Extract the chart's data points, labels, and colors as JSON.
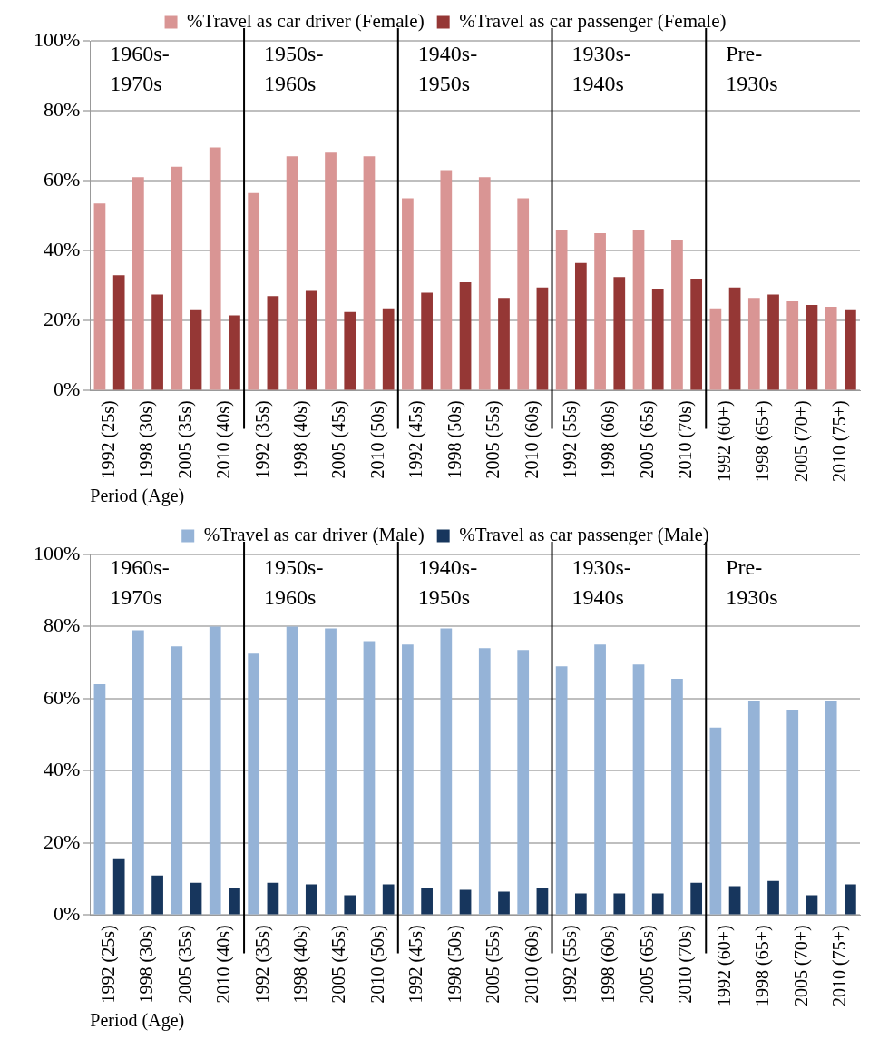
{
  "chart_data": [
    {
      "type": "bar",
      "xlabel": "Period (Age)",
      "categories": [
        "1992 (25s)",
        "1998 (30s)",
        "2005 (35s)",
        "2010 (40s)",
        "1992 (35s)",
        "1998 (40s)",
        "2005 (45s)",
        "2010 (50s)",
        "1992 (45s)",
        "1998 (50s)",
        "2005 (55s)",
        "2010 (60s)",
        "1992 (55s)",
        "1998 (60s)",
        "2005 (65s)",
        "2010 (70s)",
        "1992 (60+)",
        "1998 (65+)",
        "2005 (70+)",
        "2010 (75+)"
      ],
      "series": [
        {
          "name": "%Travel as car driver (Female)",
          "color": "#d99594",
          "values": [
            53.5,
            61,
            64,
            69.5,
            56.5,
            67,
            68,
            67,
            55,
            63,
            61,
            55,
            46,
            45,
            46,
            43,
            23.5,
            26.5,
            25.5,
            24
          ]
        },
        {
          "name": "%Travel as car passenger (Female)",
          "color": "#953735",
          "values": [
            33,
            27.5,
            23,
            21.5,
            27,
            28.5,
            22.5,
            23.5,
            28,
            31,
            26.5,
            29.5,
            36.5,
            32.5,
            29,
            32,
            29.5,
            27.5,
            24.5,
            23
          ]
        }
      ],
      "ylim": [
        0,
        100
      ],
      "yticks": [
        {
          "value": 0,
          "label": "0%"
        },
        {
          "value": 20,
          "label": "20%"
        },
        {
          "value": 40,
          "label": "40%"
        },
        {
          "value": 60,
          "label": "60%"
        },
        {
          "value": 80,
          "label": "80%"
        },
        {
          "value": 100,
          "label": "100%"
        }
      ],
      "grid": "y",
      "legend": "top",
      "annotations": [
        "1960s-\n1970s",
        "1950s-\n1960s",
        "1940s-\n1950s",
        "1930s-\n1940s",
        "Pre-\n1930s"
      ]
    },
    {
      "type": "bar",
      "xlabel": "Period (Age)",
      "categories": [
        "1992 (25s)",
        "1998 (30s)",
        "2005 (35s)",
        "2010 (40s)",
        "1992 (35s)",
        "1998 (40s)",
        "2005 (45s)",
        "2010 (50s)",
        "1992 (45s)",
        "1998 (50s)",
        "2005 (55s)",
        "2010 (60s)",
        "1992 (55s)",
        "1998 (60s)",
        "2005 (65s)",
        "2010 (70s)",
        "1992 (60+)",
        "1998 (65+)",
        "2005 (70+)",
        "2010 (75+)"
      ],
      "series": [
        {
          "name": "%Travel as car driver (Male)",
          "color": "#95b3d7",
          "values": [
            64,
            79,
            74.5,
            80,
            72.5,
            80,
            79.5,
            76,
            75,
            79.5,
            74,
            73.5,
            69,
            75,
            69.5,
            65.5,
            52,
            59.5,
            57,
            59.5
          ]
        },
        {
          "name": "%Travel as car passenger (Male)",
          "color": "#17365d",
          "values": [
            15.5,
            11,
            9,
            7.5,
            9,
            8.5,
            5.5,
            8.5,
            7.5,
            7,
            6.5,
            7.5,
            6,
            6,
            6,
            9,
            8,
            9.5,
            5.5,
            8.5
          ]
        }
      ],
      "ylim": [
        0,
        100
      ],
      "yticks": [
        {
          "value": 0,
          "label": "0%"
        },
        {
          "value": 20,
          "label": "20%"
        },
        {
          "value": 40,
          "label": "40%"
        },
        {
          "value": 60,
          "label": "60%"
        },
        {
          "value": 80,
          "label": "80%"
        },
        {
          "value": 100,
          "label": "100%"
        }
      ],
      "grid": "y",
      "legend": "top",
      "annotations": [
        "1960s-\n1970s",
        "1950s-\n1960s",
        "1940s-\n1950s",
        "1930s-\n1940s",
        "Pre-\n1930s"
      ]
    }
  ]
}
